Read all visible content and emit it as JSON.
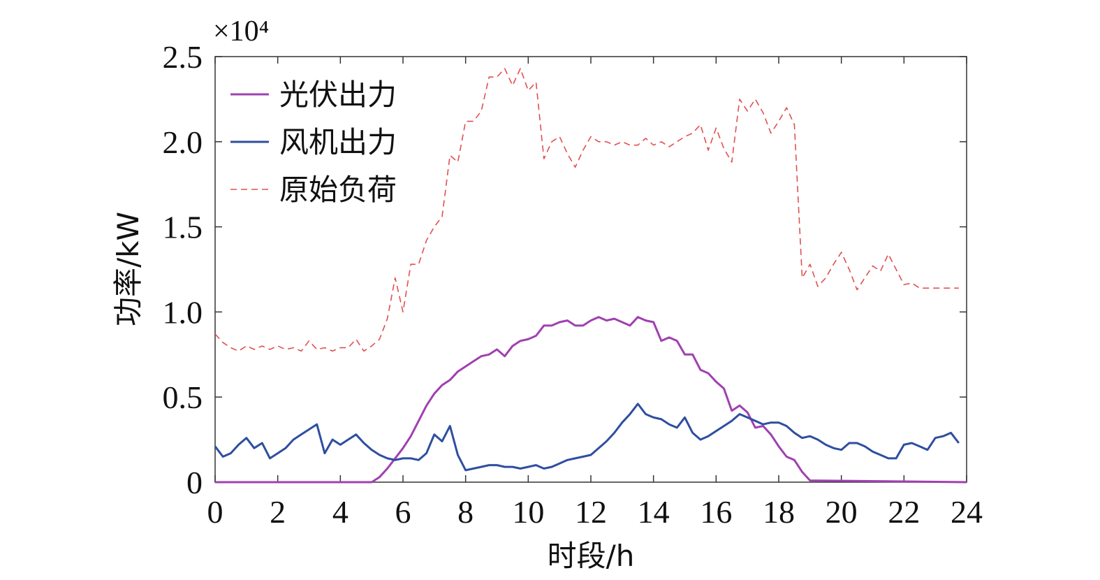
{
  "chart_data": {
    "type": "line",
    "multiplier_label": "×10⁴",
    "xlabel": "时段/h",
    "ylabel": "功率/kW",
    "xlim": [
      0,
      24
    ],
    "ylim": [
      0,
      2.5
    ],
    "xticks": [
      "0",
      "2",
      "4",
      "6",
      "8",
      "10",
      "12",
      "14",
      "16",
      "18",
      "20",
      "22",
      "24"
    ],
    "yticks": [
      "0",
      "0.5",
      "1.0",
      "1.5",
      "2.0",
      "2.5"
    ],
    "legend_position": "top-left",
    "grid": false,
    "series": [
      {
        "name": "光伏出力",
        "color": "#a040b0",
        "style": "solid",
        "x": [
          0,
          5,
          5.25,
          5.5,
          5.75,
          6,
          6.25,
          6.5,
          6.75,
          7,
          7.25,
          7.5,
          7.75,
          8,
          8.25,
          8.5,
          8.75,
          9,
          9.25,
          9.5,
          9.75,
          10,
          10.25,
          10.5,
          10.75,
          11,
          11.25,
          11.5,
          11.75,
          12,
          12.25,
          12.5,
          12.75,
          13,
          13.25,
          13.5,
          13.75,
          14,
          14.25,
          14.5,
          14.75,
          15,
          15.25,
          15.5,
          15.75,
          16,
          16.25,
          16.5,
          16.75,
          17,
          17.25,
          17.5,
          17.75,
          18,
          18.25,
          18.5,
          18.75,
          19,
          24
        ],
        "y": [
          0,
          0,
          0.03,
          0.08,
          0.14,
          0.2,
          0.27,
          0.36,
          0.45,
          0.52,
          0.57,
          0.6,
          0.65,
          0.68,
          0.71,
          0.74,
          0.75,
          0.78,
          0.74,
          0.8,
          0.83,
          0.84,
          0.86,
          0.92,
          0.92,
          0.94,
          0.95,
          0.92,
          0.92,
          0.95,
          0.97,
          0.95,
          0.96,
          0.94,
          0.92,
          0.97,
          0.95,
          0.94,
          0.83,
          0.85,
          0.83,
          0.75,
          0.75,
          0.66,
          0.64,
          0.59,
          0.55,
          0.42,
          0.45,
          0.41,
          0.32,
          0.33,
          0.28,
          0.21,
          0.15,
          0.13,
          0.06,
          0.01,
          0
        ]
      },
      {
        "name": "风机出力",
        "color": "#2e4ea0",
        "style": "solid",
        "x": [
          0,
          0.25,
          0.5,
          0.75,
          1,
          1.25,
          1.5,
          1.75,
          2,
          2.25,
          2.5,
          2.75,
          3,
          3.25,
          3.5,
          3.75,
          4,
          4.25,
          4.5,
          4.75,
          5,
          5.25,
          5.5,
          5.75,
          6,
          6.25,
          6.5,
          6.75,
          7,
          7.25,
          7.5,
          7.75,
          8,
          8.25,
          8.5,
          8.75,
          9,
          9.25,
          9.5,
          9.75,
          10,
          10.25,
          10.5,
          10.75,
          11,
          11.25,
          11.5,
          11.75,
          12,
          12.25,
          12.5,
          12.75,
          13,
          13.25,
          13.5,
          13.75,
          14,
          14.25,
          14.5,
          14.75,
          15,
          15.25,
          15.5,
          15.75,
          16,
          16.25,
          16.5,
          16.75,
          17,
          17.25,
          17.5,
          17.75,
          18,
          18.25,
          18.5,
          18.75,
          19,
          19.25,
          19.5,
          19.75,
          20,
          20.25,
          20.5,
          20.75,
          21,
          21.25,
          21.5,
          21.75,
          22,
          22.25,
          22.5,
          22.75,
          23,
          23.25,
          23.5,
          23.75
        ],
        "y": [
          0.21,
          0.15,
          0.17,
          0.22,
          0.26,
          0.2,
          0.23,
          0.14,
          0.17,
          0.2,
          0.25,
          0.28,
          0.31,
          0.34,
          0.17,
          0.25,
          0.22,
          0.25,
          0.28,
          0.23,
          0.19,
          0.16,
          0.14,
          0.13,
          0.14,
          0.14,
          0.13,
          0.17,
          0.28,
          0.24,
          0.33,
          0.16,
          0.07,
          0.08,
          0.09,
          0.1,
          0.1,
          0.09,
          0.09,
          0.08,
          0.09,
          0.1,
          0.08,
          0.09,
          0.11,
          0.13,
          0.14,
          0.15,
          0.16,
          0.2,
          0.24,
          0.29,
          0.35,
          0.4,
          0.46,
          0.4,
          0.38,
          0.37,
          0.34,
          0.32,
          0.38,
          0.29,
          0.25,
          0.27,
          0.3,
          0.33,
          0.36,
          0.4,
          0.38,
          0.36,
          0.34,
          0.35,
          0.35,
          0.33,
          0.29,
          0.26,
          0.27,
          0.25,
          0.22,
          0.2,
          0.19,
          0.23,
          0.23,
          0.21,
          0.18,
          0.16,
          0.14,
          0.14,
          0.22,
          0.23,
          0.21,
          0.19,
          0.26,
          0.27,
          0.29,
          0.23
        ]
      },
      {
        "name": "原始负荷",
        "color": "#e05050",
        "style": "dashed",
        "x": [
          0,
          0.25,
          0.5,
          0.75,
          1,
          1.25,
          1.5,
          1.75,
          2,
          2.25,
          2.5,
          2.75,
          3,
          3.25,
          3.5,
          3.75,
          4,
          4.25,
          4.5,
          4.75,
          5,
          5.25,
          5.5,
          5.75,
          6,
          6.25,
          6.5,
          6.75,
          7,
          7.25,
          7.5,
          7.75,
          8,
          8.25,
          8.5,
          8.75,
          9,
          9.25,
          9.5,
          9.75,
          10,
          10.25,
          10.5,
          10.75,
          11,
          11.25,
          11.5,
          11.75,
          12,
          12.25,
          12.5,
          12.75,
          13,
          13.25,
          13.5,
          13.75,
          14,
          14.25,
          14.5,
          14.75,
          15,
          15.25,
          15.5,
          15.75,
          16,
          16.25,
          16.5,
          16.75,
          17,
          17.25,
          17.5,
          17.75,
          18,
          18.25,
          18.5,
          18.75,
          19,
          19.25,
          19.5,
          19.75,
          20,
          20.25,
          20.5,
          20.75,
          21,
          21.25,
          21.5,
          21.75,
          22,
          22.25,
          22.5,
          22.75,
          23,
          23.25,
          23.5,
          23.75
        ],
        "y": [
          0.87,
          0.82,
          0.79,
          0.77,
          0.8,
          0.78,
          0.8,
          0.78,
          0.8,
          0.78,
          0.79,
          0.77,
          0.83,
          0.78,
          0.79,
          0.77,
          0.79,
          0.79,
          0.84,
          0.77,
          0.8,
          0.84,
          0.96,
          1.2,
          1.0,
          1.28,
          1.28,
          1.42,
          1.5,
          1.56,
          1.92,
          1.88,
          2.12,
          2.12,
          2.18,
          2.38,
          2.38,
          2.43,
          2.33,
          2.43,
          2.3,
          2.35,
          1.9,
          2.0,
          2.03,
          1.93,
          1.85,
          1.95,
          2.03,
          2.0,
          2.0,
          1.98,
          2.0,
          1.98,
          1.98,
          2.02,
          1.98,
          2.0,
          1.97,
          2.0,
          2.03,
          2.05,
          2.1,
          1.95,
          2.08,
          1.96,
          1.88,
          2.25,
          2.18,
          2.25,
          2.17,
          2.05,
          2.12,
          2.2,
          2.1,
          1.2,
          1.28,
          1.15,
          1.2,
          1.28,
          1.35,
          1.25,
          1.13,
          1.2,
          1.27,
          1.24,
          1.34,
          1.25,
          1.16,
          1.17,
          1.14,
          1.14,
          1.14,
          1.14,
          1.14,
          1.14
        ]
      }
    ]
  }
}
